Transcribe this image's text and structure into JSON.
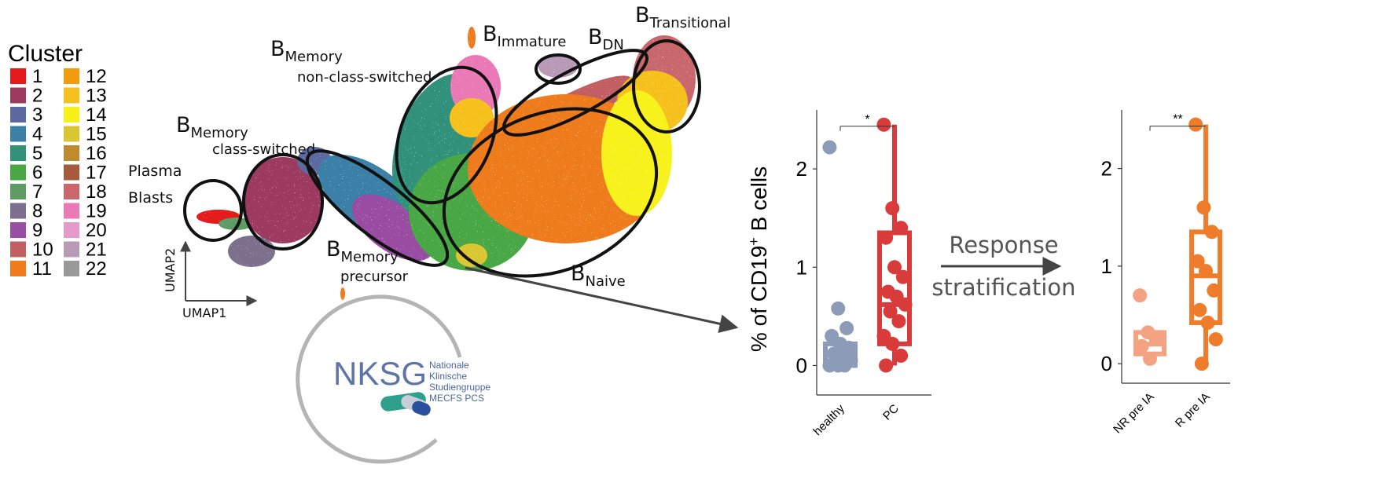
{
  "legend": {
    "title": "Cluster",
    "items": [
      {
        "label": "1",
        "color": "#e41a1c"
      },
      {
        "label": "2",
        "color": "#9c3b5e"
      },
      {
        "label": "3",
        "color": "#5c6aa1"
      },
      {
        "label": "4",
        "color": "#3b80a6"
      },
      {
        "label": "5",
        "color": "#33917a"
      },
      {
        "label": "6",
        "color": "#49a744"
      },
      {
        "label": "7",
        "color": "#5f9b65"
      },
      {
        "label": "8",
        "color": "#7d6f8d"
      },
      {
        "label": "9",
        "color": "#984ea3"
      },
      {
        "label": "10",
        "color": "#c25f63"
      },
      {
        "label": "11",
        "color": "#ef7b1c"
      },
      {
        "label": "12",
        "color": "#f39b0f"
      },
      {
        "label": "13",
        "color": "#f6c11d"
      },
      {
        "label": "14",
        "color": "#f7f11a"
      },
      {
        "label": "15",
        "color": "#d9c630"
      },
      {
        "label": "16",
        "color": "#c08a2e"
      },
      {
        "label": "17",
        "color": "#a65b3c"
      },
      {
        "label": "18",
        "color": "#c9676c"
      },
      {
        "label": "19",
        "color": "#ea7ab6"
      },
      {
        "label": "20",
        "color": "#e59acb"
      },
      {
        "label": "21",
        "color": "#b99ab6"
      },
      {
        "label": "22",
        "color": "#999999"
      }
    ]
  },
  "umap": {
    "labels": {
      "plasma": [
        "Plasma",
        "Blasts"
      ],
      "mem_cs": {
        "base": "B",
        "sub": "Memory",
        "line2": "class-switched"
      },
      "mem_ncs": {
        "base": "B",
        "sub": "Memory",
        "line2": "non-class-switched"
      },
      "immature": {
        "base": "B",
        "sub": "Immature"
      },
      "dn": {
        "base": "B",
        "sub": "DN"
      },
      "transitional": {
        "base": "B",
        "sub": "Transitional"
      },
      "mem_prec": {
        "base": "B",
        "sub": "Memory",
        "line2": "precursor"
      },
      "naive": {
        "base": "B",
        "sub": "Naive"
      }
    },
    "axis_x": "UMAP1",
    "axis_y": "UMAP2"
  },
  "logo": {
    "acronym": "NKSG",
    "lines": [
      "Nationale",
      "Klinische",
      "Studiengruppe",
      "MECFS PCS"
    ]
  },
  "arrow_text": [
    "Response",
    "stratification"
  ],
  "chart_data": [
    {
      "type": "box",
      "ylabel": {
        "prefix": "% of CD19",
        "sup": "+",
        "suffix": " B cells"
      },
      "categories": [
        "healthy",
        "PC"
      ],
      "ylim": [
        -0.3,
        2.6
      ],
      "yticks": [
        0,
        1,
        2
      ],
      "series": [
        {
          "color": "#8b9bb8",
          "q1": 0.0,
          "median": 0.12,
          "q3": 0.22,
          "whisker_low": 0.0,
          "whisker_high": 0.22,
          "points": [
            2.22,
            0.58,
            0.38,
            0.3,
            0.22,
            0.18,
            0.12,
            0.08,
            0.05,
            0.02,
            0.0,
            0.0,
            0.0
          ]
        },
        {
          "color": "#d93a3a",
          "q1": 0.22,
          "median": 0.62,
          "q3": 1.35,
          "whisker_low": 0.0,
          "whisker_high": 2.45,
          "points": [
            2.45,
            1.6,
            1.4,
            1.3,
            1.0,
            0.9,
            0.75,
            0.7,
            0.62,
            0.55,
            0.45,
            0.3,
            0.22,
            0.1,
            0.0
          ]
        }
      ],
      "significance": "*"
    },
    {
      "type": "box",
      "categories": [
        "NR pre IA",
        "R pre IA"
      ],
      "ylim": [
        -0.2,
        2.6
      ],
      "yticks": [
        0,
        1,
        2
      ],
      "series": [
        {
          "color": "#f3a382",
          "q1": 0.1,
          "median": 0.2,
          "q3": 0.32,
          "whisker_low": 0.05,
          "whisker_high": 0.32,
          "points": [
            0.7,
            0.32,
            0.25,
            0.18,
            0.05
          ]
        },
        {
          "color": "#ee7c2a",
          "q1": 0.42,
          "median": 0.9,
          "q3": 1.35,
          "whisker_low": 0.0,
          "whisker_high": 2.45,
          "points": [
            2.45,
            1.6,
            1.35,
            1.05,
            0.95,
            0.75,
            0.55,
            0.42,
            0.25,
            0.0
          ]
        }
      ],
      "significance": "**"
    }
  ]
}
